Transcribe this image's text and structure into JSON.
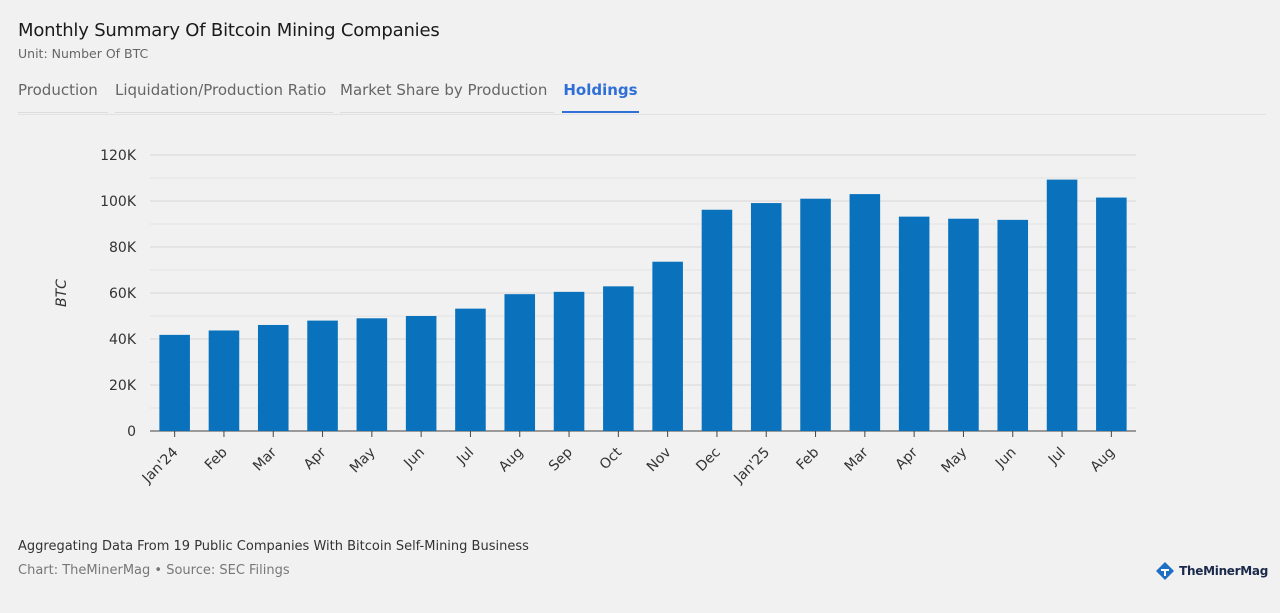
{
  "header": {
    "title": "Monthly Summary Of Bitcoin Mining Companies",
    "unit": "Unit: Number Of BTC"
  },
  "tabs": [
    {
      "label": "Production"
    },
    {
      "label": "Liquidation/Production Ratio"
    },
    {
      "label": "Market Share by Production"
    },
    {
      "label": "Holdings"
    }
  ],
  "active_tab": "Holdings",
  "chart_data": {
    "type": "bar",
    "title": "Holdings",
    "xlabel": "",
    "ylabel": "BTC",
    "ylim": [
      0,
      120000
    ],
    "yticks": [
      0,
      20000,
      40000,
      60000,
      80000,
      100000,
      120000
    ],
    "ytick_labels": [
      "0",
      "20K",
      "40K",
      "60K",
      "80K",
      "100K",
      "120K"
    ],
    "grid": true,
    "color": "#0a72bd",
    "categories": [
      "Jan'24",
      "Feb",
      "Mar",
      "Apr",
      "May",
      "Jun",
      "Jul",
      "Aug",
      "Sep",
      "Oct",
      "Nov",
      "Dec",
      "Jan'25",
      "Feb",
      "Mar",
      "Apr",
      "May",
      "Jun",
      "Jul",
      "Aug"
    ],
    "values": [
      41800,
      43700,
      46100,
      48000,
      49000,
      50000,
      53200,
      59500,
      60500,
      62900,
      73600,
      96200,
      99100,
      101000,
      103000,
      93200,
      92300,
      91800,
      109300,
      101500
    ]
  },
  "footer": {
    "note": "Aggregating Data From 19 Public Companies With Bitcoin Self-Mining Business",
    "source": "Chart: TheMinerMag • Source: SEC Filings"
  },
  "logo": {
    "text_a": "The",
    "text_b": "MinerMag",
    "icon": "minermag-logo-icon"
  }
}
